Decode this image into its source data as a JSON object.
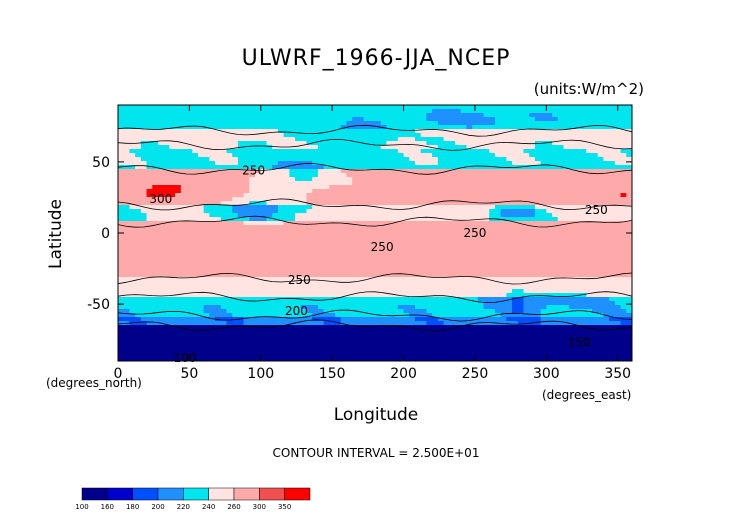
{
  "chart_data": {
    "type": "heatmap",
    "title": "ULWRF_1966-JJA_NCEP",
    "units": "(units:W/m^2)",
    "xlabel": "Longitude",
    "ylabel": "Latitude",
    "x_unit_label": "(degrees_east)",
    "y_unit_label": "(degrees_north)",
    "xlim": [
      0,
      360
    ],
    "ylim": [
      -90,
      90
    ],
    "x_ticks": [
      0,
      50,
      100,
      150,
      200,
      250,
      300,
      350
    ],
    "y_ticks": [
      50,
      0,
      -50
    ],
    "contour_interval_text": "CONTOUR INTERVAL = 2.500E+01",
    "contour_labels": [
      {
        "text": "250",
        "lon": 95,
        "lat": 44
      },
      {
        "text": "300",
        "lon": 30,
        "lat": 24
      },
      {
        "text": "250",
        "lon": 185,
        "lat": -10
      },
      {
        "text": "250",
        "lon": 250,
        "lat": 0
      },
      {
        "text": "250",
        "lon": 335,
        "lat": 16
      },
      {
        "text": "250",
        "lon": 127,
        "lat": -33
      },
      {
        "text": "200",
        "lon": 125,
        "lat": -55
      },
      {
        "text": "150",
        "lon": 323,
        "lat": -77
      },
      {
        "text": "100",
        "lon": 47,
        "lat": -88
      }
    ],
    "colorbar": {
      "boundaries": [
        100,
        160,
        180,
        200,
        220,
        240,
        260,
        300,
        350
      ],
      "colors": [
        "#00008b",
        "#0000cd",
        "#0050ff",
        "#1e90ff",
        "#00e5ee",
        "#ffe4e1",
        "#ffaaaa",
        "#f05050",
        "#ff0000"
      ]
    },
    "zonal_field_lat_bands": [
      {
        "lat": [
          72,
          90
        ],
        "value": "230-240"
      },
      {
        "lat": [
          62,
          72
        ],
        "value": "240-260"
      },
      {
        "lat": [
          45,
          62
        ],
        "value": "230-250"
      },
      {
        "lat": [
          20,
          45
        ],
        "value": "250-300+"
      },
      {
        "lat": [
          8,
          20
        ],
        "value": "220-260"
      },
      {
        "lat": [
          -32,
          8
        ],
        "value": "260-300"
      },
      {
        "lat": [
          -45,
          -32
        ],
        "value": "240-260"
      },
      {
        "lat": [
          -58,
          -45
        ],
        "value": "220-240"
      },
      {
        "lat": [
          -65,
          -58
        ],
        "value": "200-220"
      },
      {
        "lat": [
          -90,
          -65
        ],
        "value": "<160"
      }
    ]
  }
}
